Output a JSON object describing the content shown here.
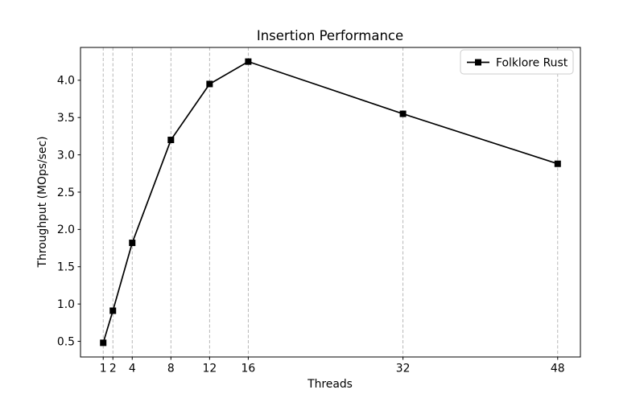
{
  "figure": {
    "background": "#ffffff"
  },
  "chart_data": {
    "type": "line",
    "title": "Insertion Performance",
    "xlabel": "Threads",
    "ylabel": "Throughput (MOps/sec)",
    "x": [
      1,
      2,
      4,
      8,
      12,
      16,
      32,
      48
    ],
    "series": [
      {
        "name": "Folklore Rust",
        "color": "#000000",
        "marker": "square",
        "values": [
          0.48,
          0.91,
          1.82,
          3.2,
          3.95,
          4.25,
          3.55,
          2.88
        ]
      }
    ],
    "xlim": [
      -1.35,
      50.35
    ],
    "ylim": [
      0.29,
      4.44
    ],
    "xticks": [
      1,
      2,
      4,
      8,
      12,
      16,
      32,
      48
    ],
    "yticks": [
      0.5,
      1.0,
      1.5,
      2.0,
      2.5,
      3.0,
      3.5,
      4.0
    ],
    "grid": {
      "axis": "x",
      "style": "dashed",
      "color": "#b0b0b0"
    },
    "legend": {
      "position": "upper-right",
      "entries": [
        "Folklore Rust"
      ]
    },
    "colors": {
      "line": "#000000",
      "text": "#000000",
      "spine": "#000000",
      "grid": "#b0b0b0",
      "legend_border": "#cccccc",
      "legend_background": "#ffffff"
    }
  }
}
